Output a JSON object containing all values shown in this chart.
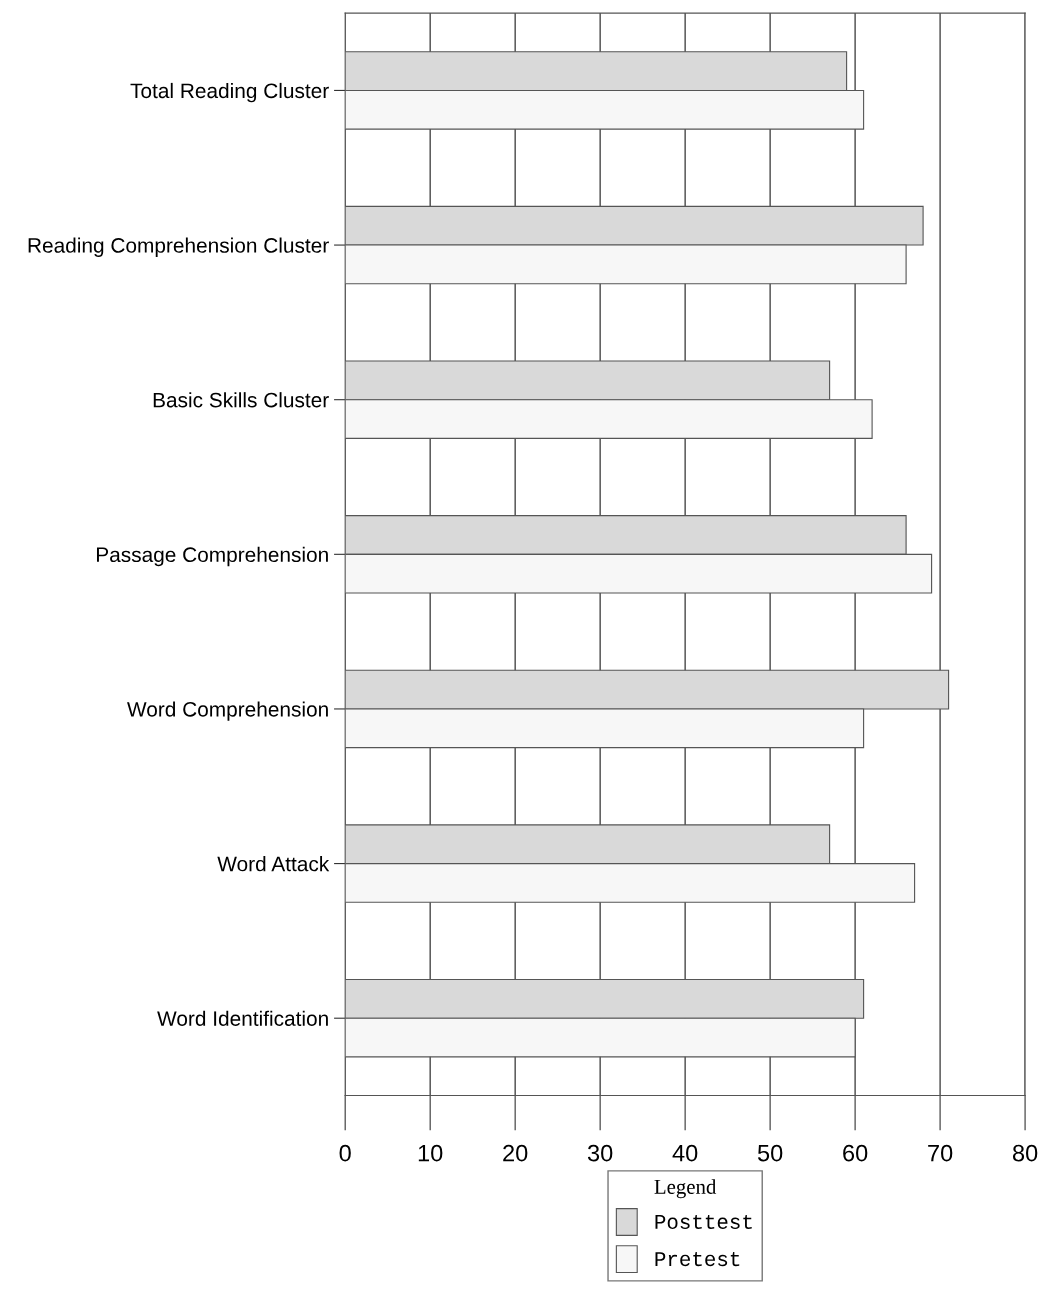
{
  "chart_data": {
    "type": "bar",
    "orientation": "horizontal",
    "categories": [
      "Total Reading Cluster",
      "Reading Comprehension Cluster",
      "Basic Skills Cluster",
      "Passage Comprehension",
      "Word Comprehension",
      "Word Attack",
      "Word Identification"
    ],
    "series": [
      {
        "name": "Posttest",
        "color": "#d9d9d9",
        "values": [
          59,
          68,
          57,
          66,
          71,
          57,
          61
        ]
      },
      {
        "name": "Pretest",
        "color": "#f7f7f7",
        "values": [
          61,
          66,
          62,
          69,
          61,
          67,
          60
        ]
      }
    ],
    "xlim": [
      0,
      80
    ],
    "xticks": [
      0,
      10,
      20,
      30,
      40,
      50,
      60,
      70,
      80
    ],
    "grid": "x",
    "legend": "bottom",
    "legend_title": "Legend"
  }
}
